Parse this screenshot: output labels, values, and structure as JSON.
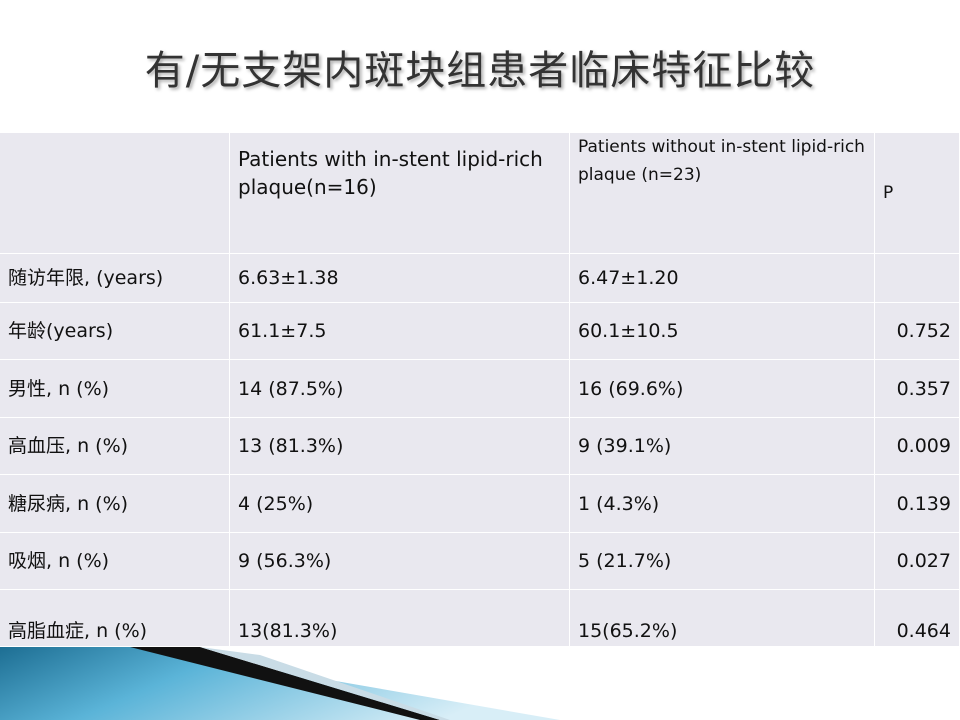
{
  "title": "有/无支架内斑块组患者临床特征比较",
  "table": {
    "header": [
      "Patients with in-stent lipid-rich plaque(n=16)",
      "Patients without in-stent lipid-rich plaque (n=23)",
      "P"
    ],
    "rows": [
      [
        "随访年限, (years)",
        "6.63±1.38",
        "6.47±1.20"
      ],
      [
        "年龄(years)",
        "61.1±7.5",
        "60.1±10.5",
        "0.752"
      ],
      [
        "男性, n (%)",
        "14 (87.5%)",
        "16 (69.6%)",
        "0.357"
      ],
      [
        "高血压, n (%)",
        "13 (81.3%)",
        "9 (39.1%)",
        "0.009"
      ],
      [
        "糖尿病, n (%)",
        "4 (25%)",
        "1 (4.3%)",
        "0.139"
      ],
      [
        "吸烟, n (%)",
        "9 (56.3%)",
        "5 (21.7%)",
        "0.027"
      ],
      [
        "高脂血症, n (%)",
        "13(81.3%)",
        "15(65.2%)",
        "0.464"
      ]
    ]
  }
}
